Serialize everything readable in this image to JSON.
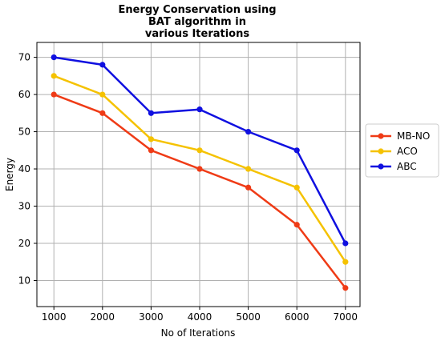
{
  "chart_data": {
    "type": "line",
    "title_lines": [
      "Energy Conservation using",
      "BAT algorithm in",
      "various Iterations"
    ],
    "xlabel": "No of Iterations",
    "ylabel": "Energy",
    "x": [
      1000,
      2000,
      3000,
      4000,
      5000,
      6000,
      7000
    ],
    "x_ticks": [
      "1000",
      "2000",
      "3000",
      "4000",
      "5000",
      "6000",
      "7000"
    ],
    "y_ticks": [
      "10",
      "20",
      "30",
      "40",
      "50",
      "60",
      "70"
    ],
    "ylim": [
      3,
      74
    ],
    "xlim": [
      650,
      7300
    ],
    "grid": true,
    "legend_position": "right",
    "series": [
      {
        "name": "MB-NO",
        "color": "#ef3b16",
        "values": [
          60,
          55,
          45,
          40,
          35,
          25,
          8
        ]
      },
      {
        "name": "ACO",
        "color": "#f5c200",
        "values": [
          65,
          60,
          48,
          45,
          40,
          35,
          15
        ]
      },
      {
        "name": "ABC",
        "color": "#1010e0",
        "values": [
          70,
          68,
          55,
          56,
          50,
          45,
          20
        ]
      }
    ]
  }
}
